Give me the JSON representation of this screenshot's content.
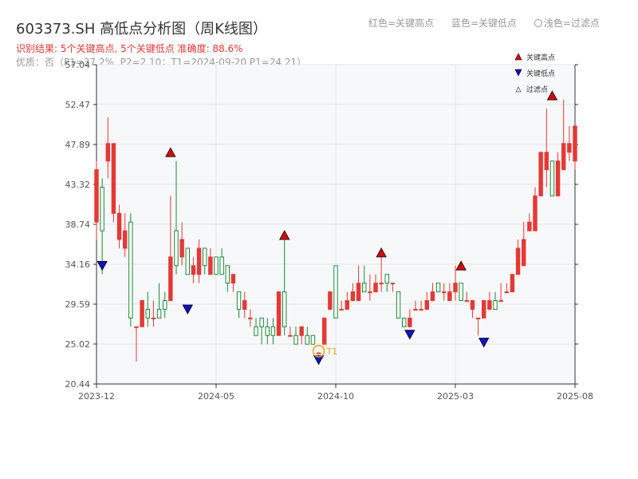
{
  "header": {
    "title": "603373.SH 高低点分析图（周K线图）",
    "legend_high": "红色=关键高点",
    "legend_low": "蓝色=关键低点",
    "legend_filtered": "浅色=过滤点",
    "result": "识别结果: 5个关键高点, 5个关键低点  准确度: 88.6%",
    "quality": "优质：否（P1=37.2%, P2=2.10；T1=2024-09-20 P1=24.21）"
  },
  "colors": {
    "up": "#e53935",
    "down": "#1b8a3a",
    "high": "#e00000",
    "low": "#1010cc",
    "marker": "#f5a623",
    "plot_bg": "#f7f8fa"
  },
  "chart_data": {
    "type": "candlestick",
    "ylim": [
      20.44,
      57.04
    ],
    "y_ticks": [
      20.44,
      25.02,
      29.59,
      34.16,
      38.74,
      43.32,
      47.89,
      52.47,
      57.04
    ],
    "x_ticks": [
      {
        "label": "2023-12",
        "index": 0
      },
      {
        "label": "2024-05",
        "index": 21
      },
      {
        "label": "2024-10",
        "index": 42
      },
      {
        "label": "2025-03",
        "index": 63
      },
      {
        "label": "2025-08",
        "index": 84
      }
    ],
    "candles": [
      [
        39,
        45,
        37,
        46
      ],
      [
        43,
        38,
        33,
        44
      ],
      [
        46,
        48,
        44,
        51
      ],
      [
        40,
        48,
        39,
        48
      ],
      [
        37,
        40,
        36,
        41
      ],
      [
        36,
        38,
        35,
        40
      ],
      [
        39,
        28,
        27,
        40
      ],
      [
        27,
        27,
        23,
        27
      ],
      [
        27,
        30,
        27,
        30
      ],
      [
        29,
        28,
        27,
        31
      ],
      [
        28,
        28,
        27,
        30
      ],
      [
        29,
        28,
        28,
        32
      ],
      [
        30,
        29,
        28,
        31
      ],
      [
        30,
        35,
        30,
        42
      ],
      [
        38,
        34,
        33,
        46
      ],
      [
        35,
        37,
        34,
        39
      ],
      [
        36,
        33,
        33,
        36
      ],
      [
        33,
        34,
        32,
        35
      ],
      [
        33,
        36,
        32,
        37
      ],
      [
        36,
        34,
        33,
        36
      ],
      [
        33,
        35,
        33,
        36
      ],
      [
        35,
        33,
        33,
        35
      ],
      [
        35,
        33,
        33,
        36
      ],
      [
        34,
        32,
        31,
        34
      ],
      [
        32,
        33,
        31,
        33
      ],
      [
        31,
        29,
        28,
        31
      ],
      [
        29,
        30,
        28,
        31
      ],
      [
        28,
        28,
        27,
        29
      ],
      [
        27,
        26,
        26,
        28
      ],
      [
        28,
        27,
        25,
        28
      ],
      [
        27,
        26,
        25,
        28
      ],
      [
        27,
        26,
        25,
        28
      ],
      [
        26,
        31,
        26,
        31
      ],
      [
        31,
        27,
        26,
        37
      ],
      [
        26,
        26,
        26,
        27
      ],
      [
        26,
        25,
        25,
        27
      ],
      [
        26,
        27,
        25,
        27
      ],
      [
        26,
        25,
        25,
        27
      ],
      [
        26,
        25,
        25,
        26
      ],
      [
        24,
        24,
        24,
        24
      ],
      [
        25,
        28,
        25,
        28
      ],
      [
        29,
        31,
        29,
        31
      ],
      [
        34,
        28,
        28,
        34
      ],
      [
        29,
        29,
        29,
        30
      ],
      [
        29,
        30,
        29,
        31
      ],
      [
        30,
        31,
        30,
        32
      ],
      [
        30,
        32,
        30,
        34
      ],
      [
        32,
        31,
        31,
        34
      ],
      [
        31,
        31,
        30,
        33
      ],
      [
        31,
        32,
        31,
        33
      ],
      [
        32,
        32,
        31,
        35
      ],
      [
        33,
        32,
        31,
        33
      ],
      [
        32,
        32,
        31,
        32
      ],
      [
        31,
        28,
        28,
        31
      ],
      [
        28,
        27,
        27,
        28
      ],
      [
        27,
        28,
        27,
        29
      ],
      [
        29,
        29,
        29,
        30
      ],
      [
        29,
        29,
        29,
        30
      ],
      [
        29,
        30,
        29,
        31
      ],
      [
        30,
        31,
        30,
        32
      ],
      [
        32,
        31,
        31,
        32
      ],
      [
        31,
        31,
        30,
        32
      ],
      [
        30,
        31,
        30,
        32
      ],
      [
        31,
        32,
        30,
        34
      ],
      [
        32,
        30,
        30,
        32
      ],
      [
        30,
        30,
        30,
        31
      ],
      [
        29,
        30,
        28,
        30
      ],
      [
        28,
        28,
        26,
        28
      ],
      [
        28,
        30,
        28,
        30
      ],
      [
        29,
        30,
        29,
        31
      ],
      [
        30,
        29,
        29,
        31
      ],
      [
        30,
        30,
        30,
        32
      ],
      [
        31,
        31,
        31,
        32
      ],
      [
        31,
        33,
        31,
        33
      ],
      [
        33,
        36,
        33,
        37
      ],
      [
        34,
        37,
        34,
        39
      ],
      [
        38,
        39,
        38,
        40
      ],
      [
        38,
        42,
        38,
        43
      ],
      [
        42,
        47,
        42,
        47
      ],
      [
        45,
        47,
        43,
        52
      ],
      [
        46,
        42,
        42,
        46
      ],
      [
        42,
        46,
        42,
        47
      ],
      [
        45,
        48,
        45,
        53
      ],
      [
        47,
        48,
        46,
        50
      ],
      [
        46,
        50,
        45,
        50
      ]
    ],
    "key_highs": [
      {
        "index": 13,
        "value": 46.5
      },
      {
        "index": 33,
        "value": 37.0
      },
      {
        "index": 50,
        "value": 35.0
      },
      {
        "index": 64,
        "value": 33.5
      },
      {
        "index": 80,
        "value": 53.0
      }
    ],
    "key_lows": [
      {
        "index": 1,
        "value": 34.5
      },
      {
        "index": 16,
        "value": 29.5
      },
      {
        "index": 39,
        "value": 23.7
      },
      {
        "index": 55,
        "value": 26.6
      },
      {
        "index": 68,
        "value": 25.7
      }
    ],
    "marker": {
      "label": "T1",
      "index": 39,
      "value": 24.21
    },
    "legend": [
      "关键高点",
      "关键低点",
      "过滤点"
    ]
  }
}
